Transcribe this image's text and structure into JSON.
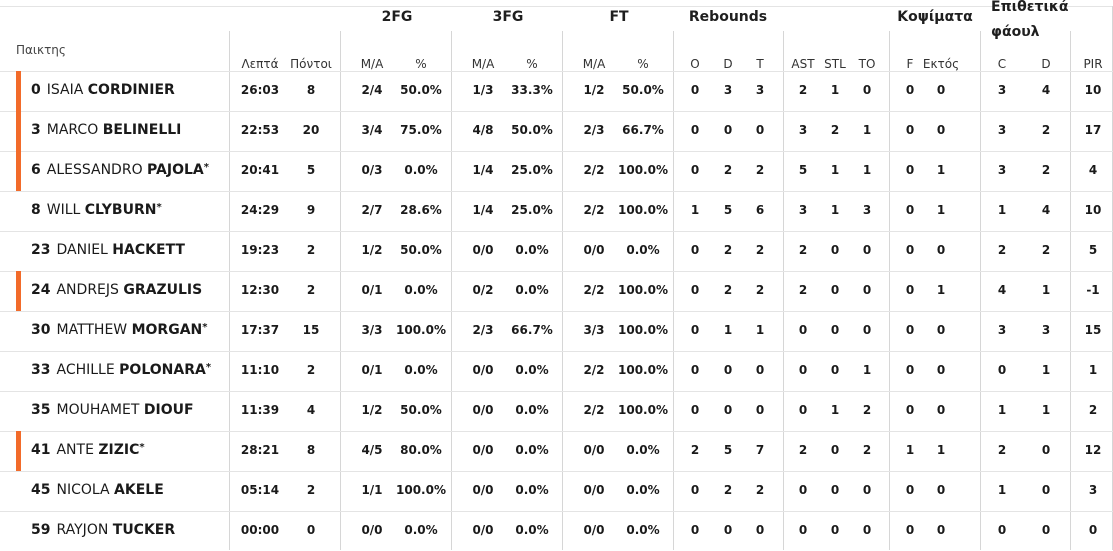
{
  "headers": {
    "player": "Παικτης",
    "groups": [
      "2FG",
      "3FG",
      "FT",
      "Rebounds",
      "Κοψίματα",
      "Επιθετικά",
      "φάουλ"
    ],
    "subs": [
      "Λεπτά",
      "Πόντοι",
      "M/A",
      "%",
      "M/A",
      "%",
      "M/A",
      "%",
      "O",
      "D",
      "T",
      "AST",
      "STL",
      "TO",
      "F",
      "Εκτός",
      "C",
      "D",
      "PIR"
    ]
  },
  "accent_color": "#f26b2a",
  "players": [
    {
      "num": "0",
      "first": "ISAIA",
      "last": "CORDINIER",
      "star": "",
      "marked": true,
      "stats": [
        "26:03",
        "8",
        "2/4",
        "50.0%",
        "1/3",
        "33.3%",
        "1/2",
        "50.0%",
        "0",
        "3",
        "3",
        "2",
        "1",
        "0",
        "0",
        "0",
        "3",
        "4",
        "10"
      ]
    },
    {
      "num": "3",
      "first": "MARCO",
      "last": "BELINELLI",
      "star": "",
      "marked": true,
      "stats": [
        "22:53",
        "20",
        "3/4",
        "75.0%",
        "4/8",
        "50.0%",
        "2/3",
        "66.7%",
        "0",
        "0",
        "0",
        "3",
        "2",
        "1",
        "0",
        "0",
        "3",
        "2",
        "17"
      ]
    },
    {
      "num": "6",
      "first": "ALESSANDRO",
      "last": "PAJOLA",
      "star": "*",
      "marked": true,
      "stats": [
        "20:41",
        "5",
        "0/3",
        "0.0%",
        "1/4",
        "25.0%",
        "2/2",
        "100.0%",
        "0",
        "2",
        "2",
        "5",
        "1",
        "1",
        "0",
        "1",
        "3",
        "2",
        "4"
      ]
    },
    {
      "num": "8",
      "first": "WILL",
      "last": "CLYBURN",
      "star": "*",
      "marked": false,
      "stats": [
        "24:29",
        "9",
        "2/7",
        "28.6%",
        "1/4",
        "25.0%",
        "2/2",
        "100.0%",
        "1",
        "5",
        "6",
        "3",
        "1",
        "3",
        "0",
        "1",
        "1",
        "4",
        "10"
      ]
    },
    {
      "num": "23",
      "first": "DANIEL",
      "last": "HACKETT",
      "star": "",
      "marked": false,
      "stats": [
        "19:23",
        "2",
        "1/2",
        "50.0%",
        "0/0",
        "0.0%",
        "0/0",
        "0.0%",
        "0",
        "2",
        "2",
        "2",
        "0",
        "0",
        "0",
        "0",
        "2",
        "2",
        "5"
      ]
    },
    {
      "num": "24",
      "first": "ANDREJS",
      "last": "GRAZULIS",
      "star": "",
      "marked": true,
      "stats": [
        "12:30",
        "2",
        "0/1",
        "0.0%",
        "0/2",
        "0.0%",
        "2/2",
        "100.0%",
        "0",
        "2",
        "2",
        "2",
        "0",
        "0",
        "0",
        "1",
        "4",
        "1",
        "-1"
      ]
    },
    {
      "num": "30",
      "first": "MATTHEW",
      "last": "MORGAN",
      "star": "*",
      "marked": false,
      "stats": [
        "17:37",
        "15",
        "3/3",
        "100.0%",
        "2/3",
        "66.7%",
        "3/3",
        "100.0%",
        "0",
        "1",
        "1",
        "0",
        "0",
        "0",
        "0",
        "0",
        "3",
        "3",
        "15"
      ]
    },
    {
      "num": "33",
      "first": "ACHILLE",
      "last": "POLONARA",
      "star": "*",
      "marked": false,
      "stats": [
        "11:10",
        "2",
        "0/1",
        "0.0%",
        "0/0",
        "0.0%",
        "2/2",
        "100.0%",
        "0",
        "0",
        "0",
        "0",
        "0",
        "1",
        "0",
        "0",
        "0",
        "1",
        "1"
      ]
    },
    {
      "num": "35",
      "first": "MOUHAMET",
      "last": "DIOUF",
      "star": "",
      "marked": false,
      "stats": [
        "11:39",
        "4",
        "1/2",
        "50.0%",
        "0/0",
        "0.0%",
        "2/2",
        "100.0%",
        "0",
        "0",
        "0",
        "0",
        "1",
        "2",
        "0",
        "0",
        "1",
        "1",
        "2"
      ]
    },
    {
      "num": "41",
      "first": "ANTE",
      "last": "ZIZIC",
      "star": "*",
      "marked": true,
      "stats": [
        "28:21",
        "8",
        "4/5",
        "80.0%",
        "0/0",
        "0.0%",
        "0/0",
        "0.0%",
        "2",
        "5",
        "7",
        "2",
        "0",
        "2",
        "1",
        "1",
        "2",
        "0",
        "12"
      ]
    },
    {
      "num": "45",
      "first": "NICOLA",
      "last": "AKELE",
      "star": "",
      "marked": false,
      "stats": [
        "05:14",
        "2",
        "1/1",
        "100.0%",
        "0/0",
        "0.0%",
        "0/0",
        "0.0%",
        "0",
        "2",
        "2",
        "0",
        "0",
        "0",
        "0",
        "0",
        "1",
        "0",
        "3"
      ]
    },
    {
      "num": "59",
      "first": "RAYJON",
      "last": "TUCKER",
      "star": "",
      "marked": false,
      "stats": [
        "00:00",
        "0",
        "0/0",
        "0.0%",
        "0/0",
        "0.0%",
        "0/0",
        "0.0%",
        "0",
        "0",
        "0",
        "0",
        "0",
        "0",
        "0",
        "0",
        "0",
        "0",
        "0"
      ]
    }
  ]
}
